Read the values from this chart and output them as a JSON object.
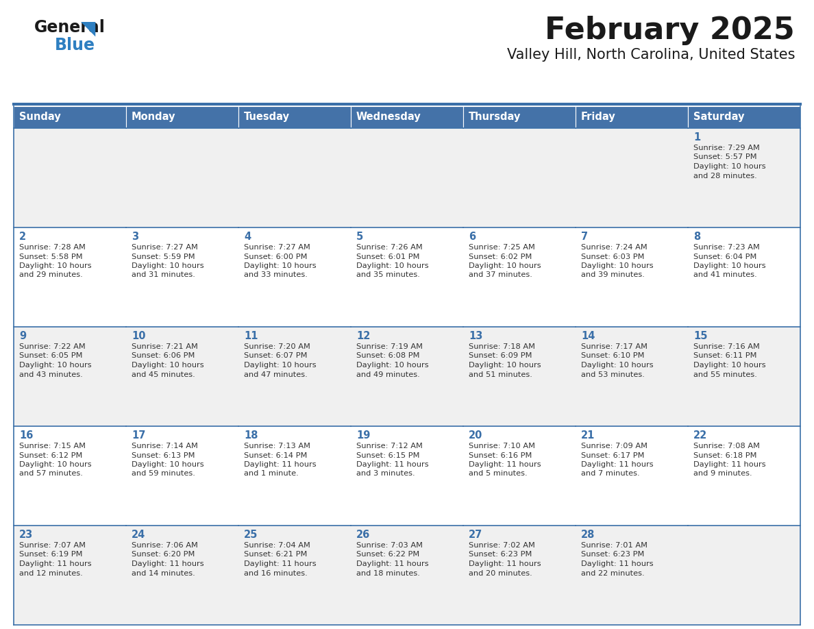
{
  "title": "February 2025",
  "subtitle": "Valley Hill, North Carolina, United States",
  "days_of_week": [
    "Sunday",
    "Monday",
    "Tuesday",
    "Wednesday",
    "Thursday",
    "Friday",
    "Saturday"
  ],
  "header_bg": "#4472A8",
  "header_text": "#FFFFFF",
  "day_number_color": "#3A6FA8",
  "cell_info_color": "#333333",
  "cell_bg_light": "#F0F0F0",
  "cell_bg_white": "#FFFFFF",
  "border_color": "#3A6FA8",
  "title_color": "#1a1a1a",
  "subtitle_color": "#1a1a1a",
  "logo_general_color": "#1a1a1a",
  "logo_blue_color": "#2E7FC1",
  "calendar_data": [
    [
      null,
      null,
      null,
      null,
      null,
      null,
      {
        "day": 1,
        "sunrise": "7:29 AM",
        "sunset": "5:57 PM",
        "daylight": "10 hours",
        "daylight2": "and 28 minutes."
      }
    ],
    [
      {
        "day": 2,
        "sunrise": "7:28 AM",
        "sunset": "5:58 PM",
        "daylight": "10 hours",
        "daylight2": "and 29 minutes."
      },
      {
        "day": 3,
        "sunrise": "7:27 AM",
        "sunset": "5:59 PM",
        "daylight": "10 hours",
        "daylight2": "and 31 minutes."
      },
      {
        "day": 4,
        "sunrise": "7:27 AM",
        "sunset": "6:00 PM",
        "daylight": "10 hours",
        "daylight2": "and 33 minutes."
      },
      {
        "day": 5,
        "sunrise": "7:26 AM",
        "sunset": "6:01 PM",
        "daylight": "10 hours",
        "daylight2": "and 35 minutes."
      },
      {
        "day": 6,
        "sunrise": "7:25 AM",
        "sunset": "6:02 PM",
        "daylight": "10 hours",
        "daylight2": "and 37 minutes."
      },
      {
        "day": 7,
        "sunrise": "7:24 AM",
        "sunset": "6:03 PM",
        "daylight": "10 hours",
        "daylight2": "and 39 minutes."
      },
      {
        "day": 8,
        "sunrise": "7:23 AM",
        "sunset": "6:04 PM",
        "daylight": "10 hours",
        "daylight2": "and 41 minutes."
      }
    ],
    [
      {
        "day": 9,
        "sunrise": "7:22 AM",
        "sunset": "6:05 PM",
        "daylight": "10 hours",
        "daylight2": "and 43 minutes."
      },
      {
        "day": 10,
        "sunrise": "7:21 AM",
        "sunset": "6:06 PM",
        "daylight": "10 hours",
        "daylight2": "and 45 minutes."
      },
      {
        "day": 11,
        "sunrise": "7:20 AM",
        "sunset": "6:07 PM",
        "daylight": "10 hours",
        "daylight2": "and 47 minutes."
      },
      {
        "day": 12,
        "sunrise": "7:19 AM",
        "sunset": "6:08 PM",
        "daylight": "10 hours",
        "daylight2": "and 49 minutes."
      },
      {
        "day": 13,
        "sunrise": "7:18 AM",
        "sunset": "6:09 PM",
        "daylight": "10 hours",
        "daylight2": "and 51 minutes."
      },
      {
        "day": 14,
        "sunrise": "7:17 AM",
        "sunset": "6:10 PM",
        "daylight": "10 hours",
        "daylight2": "and 53 minutes."
      },
      {
        "day": 15,
        "sunrise": "7:16 AM",
        "sunset": "6:11 PM",
        "daylight": "10 hours",
        "daylight2": "and 55 minutes."
      }
    ],
    [
      {
        "day": 16,
        "sunrise": "7:15 AM",
        "sunset": "6:12 PM",
        "daylight": "10 hours",
        "daylight2": "and 57 minutes."
      },
      {
        "day": 17,
        "sunrise": "7:14 AM",
        "sunset": "6:13 PM",
        "daylight": "10 hours",
        "daylight2": "and 59 minutes."
      },
      {
        "day": 18,
        "sunrise": "7:13 AM",
        "sunset": "6:14 PM",
        "daylight": "11 hours",
        "daylight2": "and 1 minute."
      },
      {
        "day": 19,
        "sunrise": "7:12 AM",
        "sunset": "6:15 PM",
        "daylight": "11 hours",
        "daylight2": "and 3 minutes."
      },
      {
        "day": 20,
        "sunrise": "7:10 AM",
        "sunset": "6:16 PM",
        "daylight": "11 hours",
        "daylight2": "and 5 minutes."
      },
      {
        "day": 21,
        "sunrise": "7:09 AM",
        "sunset": "6:17 PM",
        "daylight": "11 hours",
        "daylight2": "and 7 minutes."
      },
      {
        "day": 22,
        "sunrise": "7:08 AM",
        "sunset": "6:18 PM",
        "daylight": "11 hours",
        "daylight2": "and 9 minutes."
      }
    ],
    [
      {
        "day": 23,
        "sunrise": "7:07 AM",
        "sunset": "6:19 PM",
        "daylight": "11 hours",
        "daylight2": "and 12 minutes."
      },
      {
        "day": 24,
        "sunrise": "7:06 AM",
        "sunset": "6:20 PM",
        "daylight": "11 hours",
        "daylight2": "and 14 minutes."
      },
      {
        "day": 25,
        "sunrise": "7:04 AM",
        "sunset": "6:21 PM",
        "daylight": "11 hours",
        "daylight2": "and 16 minutes."
      },
      {
        "day": 26,
        "sunrise": "7:03 AM",
        "sunset": "6:22 PM",
        "daylight": "11 hours",
        "daylight2": "and 18 minutes."
      },
      {
        "day": 27,
        "sunrise": "7:02 AM",
        "sunset": "6:23 PM",
        "daylight": "11 hours",
        "daylight2": "and 20 minutes."
      },
      {
        "day": 28,
        "sunrise": "7:01 AM",
        "sunset": "6:23 PM",
        "daylight": "11 hours",
        "daylight2": "and 22 minutes."
      },
      null
    ]
  ]
}
